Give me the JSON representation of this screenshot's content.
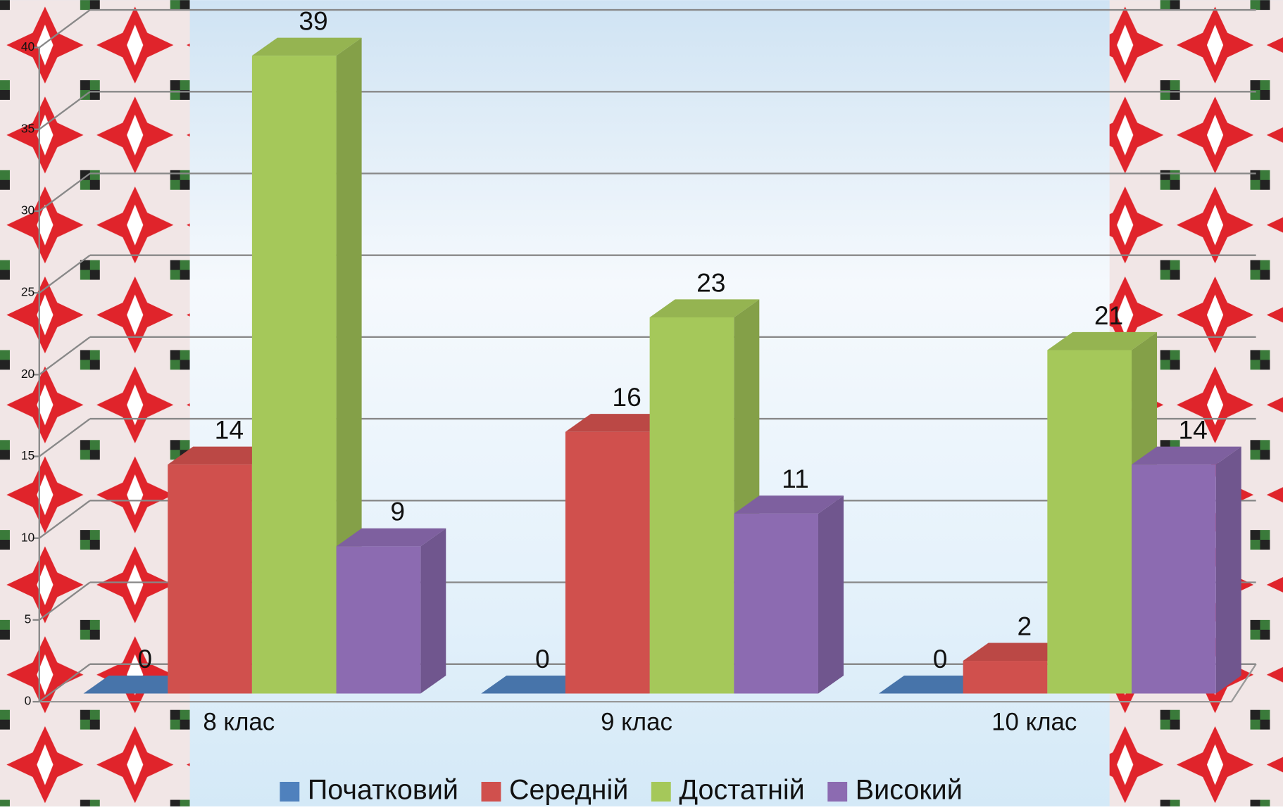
{
  "chart_data": {
    "type": "bar3d",
    "categories": [
      "8 клас",
      "9 клас",
      "10 клас"
    ],
    "series": [
      {
        "name": "Початковий",
        "color": "#4f81bd",
        "values": [
          0,
          0,
          0
        ]
      },
      {
        "name": "Середній",
        "color": "#d0504d",
        "values": [
          14,
          16,
          2
        ]
      },
      {
        "name": "Достатній",
        "color": "#a5c85a",
        "values": [
          39,
          23,
          21
        ]
      },
      {
        "name": "Високий",
        "color": "#8c6bb1",
        "values": [
          9,
          11,
          14
        ]
      }
    ],
    "ylim": [
      0,
      40
    ],
    "yticks": [
      0,
      5,
      10,
      15,
      20,
      25,
      30,
      35,
      40
    ],
    "grid": true,
    "legend": "bottom"
  }
}
